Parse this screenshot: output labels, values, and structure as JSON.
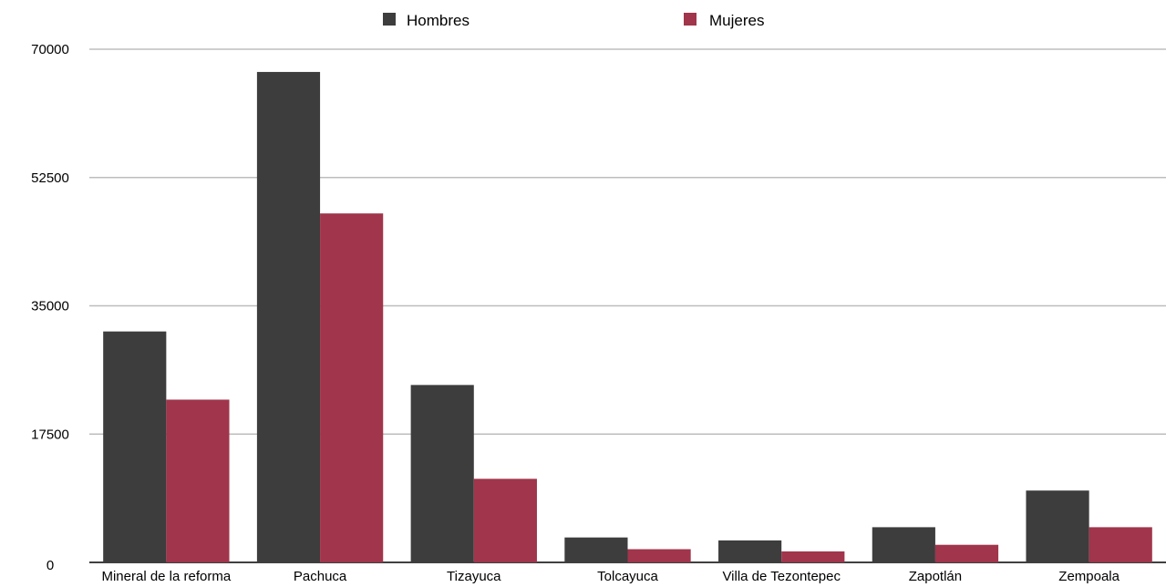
{
  "chart_data": {
    "type": "bar",
    "categories": [
      "Mineral de la reforma",
      "Pachuca",
      "Tizayuca",
      "Tolcayuca",
      "Villa de Tezontepec",
      "Zapotlán",
      "Zempoala"
    ],
    "series": [
      {
        "name": "Hombres",
        "color": "#3d3d3d",
        "values": [
          31500,
          66900,
          24200,
          3400,
          3000,
          4800,
          9800
        ]
      },
      {
        "name": "Mujeres",
        "color": "#a0354b",
        "values": [
          22200,
          47600,
          11400,
          1800,
          1500,
          2400,
          4800
        ]
      }
    ],
    "yticks": [
      0,
      17500,
      35000,
      52500,
      70000
    ],
    "ylim": [
      0,
      70000
    ],
    "grid": true,
    "legend_position": "top-center"
  }
}
